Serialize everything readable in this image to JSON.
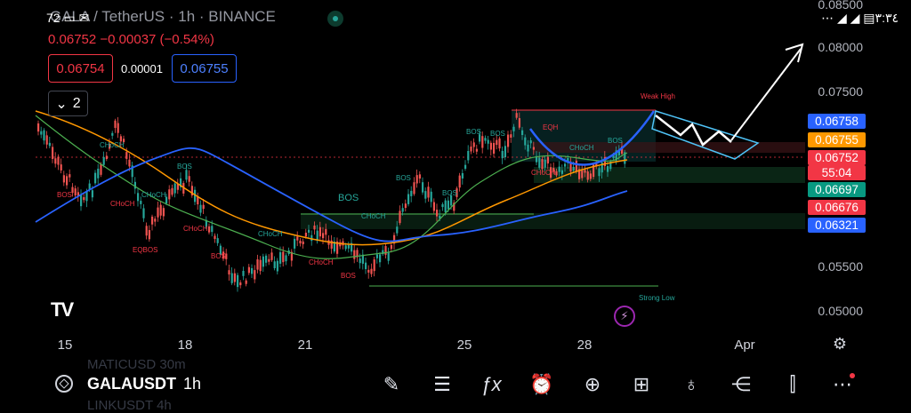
{
  "header": {
    "title": "GALA / TetherUS · 1h · BINANCE",
    "status_icons": "72 ▭ ✉",
    "last_price": "0.06752",
    "change": "−0.00037 (−0.54%)",
    "sell_price": "0.06754",
    "spread": "0.00001",
    "buy_price": "0.06755",
    "indicator_count": "2",
    "status_right": "⋯ ◢ ◢ ▤٣:٣٤"
  },
  "price_axis": [
    "0.08500",
    "0.08000",
    "0.07500",
    "0.05500",
    "0.05000"
  ],
  "price_tags": [
    {
      "label": "0.06758",
      "color": "#2962ff"
    },
    {
      "label": "0.06755",
      "color": "#ff9800"
    },
    {
      "label": "0.06752",
      "color": "#f23645"
    },
    {
      "label": "55:04",
      "color": "#f23645"
    },
    {
      "label": "0.06697",
      "color": "#089981"
    },
    {
      "label": "0.06676",
      "color": "#f23645"
    },
    {
      "label": "0.06321",
      "color": "#2962ff"
    }
  ],
  "time_axis": [
    "15",
    "18",
    "21",
    "25",
    "28",
    "Apr"
  ],
  "annotations": {
    "weak_high": "Weak High",
    "strong_low": "Strong Low",
    "eqh": "EQH",
    "eqbos": "EQBOS",
    "bos": "BOS",
    "choch": "CHoCH"
  },
  "watermark": "TV",
  "watchlist_ghost": [
    "MATICUSD 30m",
    "LINKUSDT 4h"
  ],
  "toolbar": {
    "symbol": "GALAUSDT",
    "timeframe": "1h",
    "buttons": [
      "draw",
      "objects",
      "indicators",
      "alert",
      "add",
      "layouts",
      "ideas",
      "share",
      "chart-type",
      "more"
    ]
  },
  "colors": {
    "bull": "#26a69a",
    "bear": "#ef5350",
    "ma_blue": "#2962ff",
    "ma_orange": "#ff9800",
    "ma_green": "#4caf50"
  }
}
